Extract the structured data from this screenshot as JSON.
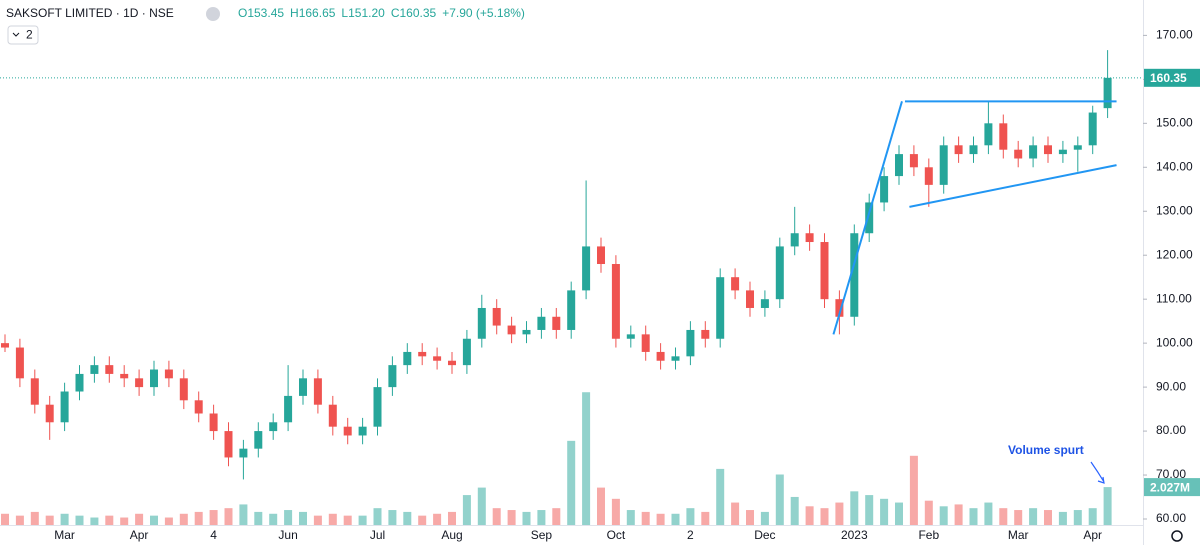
{
  "chart_data": {
    "type": "candlestick",
    "title": "SAKSOFT LIMITED · 1D · NSE",
    "ohlc_text": [
      "O153.45",
      "H166.65",
      "L151.20",
      "C160.35",
      "+7.90 (+5.18%)"
    ],
    "indicator_badge": "2",
    "categories": [
      null,
      null,
      null,
      null,
      "Mar",
      null,
      null,
      null,
      null,
      "Apr",
      null,
      null,
      null,
      null,
      "4",
      null,
      null,
      null,
      null,
      "Jun",
      null,
      null,
      null,
      null,
      null,
      "Jul",
      null,
      null,
      null,
      null,
      "Aug",
      null,
      null,
      null,
      null,
      null,
      "Sep",
      null,
      null,
      null,
      null,
      "Oct",
      null,
      null,
      null,
      null,
      "2",
      null,
      null,
      null,
      null,
      "Dec",
      null,
      null,
      null,
      null,
      null,
      "2023",
      null,
      null,
      null,
      null,
      "Feb",
      null,
      null,
      null,
      null,
      null,
      "Mar",
      null,
      null,
      null,
      null,
      "Apr",
      null
    ],
    "open": [
      100,
      99,
      92,
      86,
      82,
      89,
      93,
      95,
      93,
      92,
      90,
      94,
      92,
      87,
      84,
      80,
      74,
      76,
      80,
      82,
      88,
      92,
      86,
      81,
      79,
      81,
      90,
      95,
      98,
      97,
      96,
      95,
      101,
      108,
      104,
      102,
      103,
      106,
      103,
      112,
      122,
      118,
      101,
      102,
      98,
      96,
      97,
      103,
      101,
      115,
      112,
      108,
      110,
      122,
      125,
      123,
      110,
      106,
      125,
      132,
      138,
      143,
      140,
      136,
      145,
      143,
      145,
      150,
      144,
      142,
      145,
      143,
      144,
      145,
      153.45
    ],
    "high": [
      102,
      101,
      94,
      88,
      91,
      95,
      97,
      97,
      95,
      94,
      96,
      96,
      94,
      89,
      86,
      82,
      78,
      82,
      84,
      95,
      94,
      94,
      88,
      83,
      83,
      92,
      97,
      100,
      100,
      99,
      98,
      103,
      111,
      110,
      106,
      105,
      108,
      108,
      114,
      137,
      124,
      120,
      104,
      104,
      100,
      99,
      105,
      105,
      117,
      117,
      114,
      112,
      124,
      131,
      127,
      125,
      112,
      127,
      134,
      140,
      145,
      145,
      142,
      147,
      147,
      147,
      155,
      152,
      146,
      147,
      147,
      146,
      147,
      154,
      166.65
    ],
    "low": [
      98,
      90,
      84,
      78,
      80,
      87,
      91,
      91,
      90,
      88,
      88,
      90,
      85,
      82,
      78,
      72,
      69,
      74,
      78,
      80,
      86,
      84,
      79,
      77,
      77,
      79,
      88,
      93,
      95,
      94,
      93,
      93,
      99,
      102,
      100,
      100,
      101,
      101,
      101,
      110,
      116,
      99,
      99,
      96,
      94,
      94,
      95,
      99,
      99,
      110,
      106,
      106,
      108,
      120,
      121,
      108,
      102,
      104,
      123,
      130,
      136,
      138,
      131,
      134,
      141,
      141,
      143,
      142,
      140,
      140,
      141,
      141,
      139,
      143,
      151.2
    ],
    "close": [
      99,
      92,
      86,
      82,
      89,
      93,
      95,
      93,
      92,
      90,
      94,
      92,
      87,
      84,
      80,
      74,
      76,
      80,
      82,
      88,
      92,
      86,
      81,
      79,
      81,
      90,
      95,
      98,
      97,
      96,
      95,
      101,
      108,
      104,
      102,
      103,
      106,
      103,
      112,
      122,
      118,
      101,
      102,
      98,
      96,
      97,
      103,
      101,
      115,
      112,
      108,
      110,
      122,
      125,
      123,
      110,
      106,
      125,
      132,
      138,
      143,
      140,
      136,
      145,
      143,
      145,
      150,
      144,
      142,
      145,
      143,
      144,
      145,
      152.45,
      160.35
    ],
    "volume": {
      "values": [
        0.6,
        0.5,
        0.7,
        0.5,
        0.6,
        0.5,
        0.4,
        0.5,
        0.4,
        0.6,
        0.5,
        0.4,
        0.6,
        0.7,
        0.8,
        0.9,
        1.1,
        0.7,
        0.6,
        0.8,
        0.7,
        0.5,
        0.6,
        0.5,
        0.5,
        0.9,
        0.8,
        0.7,
        0.5,
        0.6,
        0.7,
        1.6,
        2.0,
        0.9,
        0.8,
        0.7,
        0.8,
        0.9,
        4.5,
        7.1,
        2.0,
        1.4,
        0.8,
        0.7,
        0.6,
        0.6,
        0.9,
        0.7,
        3.0,
        1.2,
        0.8,
        0.7,
        2.7,
        1.5,
        1.0,
        0.9,
        1.2,
        1.8,
        1.6,
        1.4,
        1.2,
        3.7,
        1.3,
        1.0,
        1.1,
        0.9,
        1.2,
        0.9,
        0.8,
        0.9,
        0.8,
        0.7,
        0.8,
        0.9,
        2.027
      ],
      "value_labels": [
        null,
        null,
        null,
        null,
        null,
        null,
        null,
        null,
        null,
        null,
        null,
        null,
        null,
        null,
        null,
        null,
        null,
        null,
        null,
        null,
        null,
        null,
        null,
        null,
        null,
        null,
        null,
        null,
        null,
        null,
        null,
        null,
        null,
        null,
        null,
        null,
        null,
        null,
        null,
        null,
        null,
        null,
        null,
        null,
        null,
        null,
        null,
        null,
        null,
        null,
        null,
        null,
        null,
        null,
        null,
        null,
        null,
        null,
        null,
        null,
        null,
        null,
        null,
        null,
        null,
        null,
        null,
        null,
        null,
        null,
        null,
        null,
        null,
        null,
        "2.027M"
      ]
    },
    "up_color": "#26a69a",
    "down_color": "#ef5350",
    "ylim": [
      57.5,
      173.5
    ],
    "yticks": [
      {
        "value": 60,
        "label": "60.00"
      },
      {
        "value": 70,
        "label": "70.00"
      },
      {
        "value": 80,
        "label": "80.00"
      },
      {
        "value": 90,
        "label": "90.00"
      },
      {
        "value": 100,
        "label": "100.00"
      },
      {
        "value": 110,
        "label": "110.00"
      },
      {
        "value": 120,
        "label": "120.00"
      },
      {
        "value": 130,
        "label": "130.00"
      },
      {
        "value": 140,
        "label": "140.00"
      },
      {
        "value": 150,
        "label": "150.00"
      },
      {
        "value": 160,
        "label": "160.00"
      },
      {
        "value": 170,
        "label": "170.00"
      }
    ],
    "trendlines": [
      {
        "x": [
          55.6,
          60.2
        ],
        "y": [
          102,
          155
        ],
        "color": "#2196f3"
      },
      {
        "x": [
          60.4,
          74.6
        ],
        "y": [
          155,
          155
        ],
        "color": "#2196f3"
      },
      {
        "x": [
          60.7,
          74.6
        ],
        "y": [
          131,
          140.5
        ],
        "color": "#2196f3"
      }
    ],
    "annotation": "Volume spurt"
  }
}
